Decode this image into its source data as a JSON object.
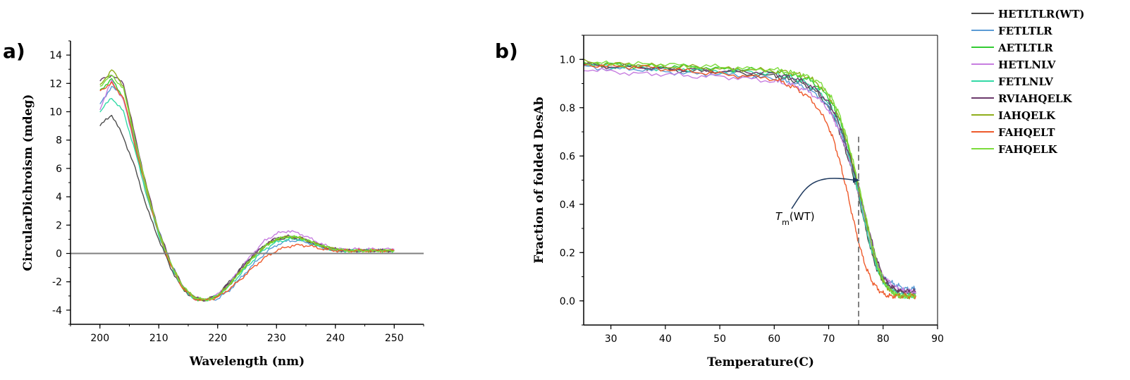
{
  "panels": {
    "a": "a)",
    "b": "b)"
  },
  "colors": {
    "HETLTLR(WT)": "#4d4d4d",
    "FETLTLR": "#5b9bd5",
    "AETLTLR": "#33cc33",
    "HETLNLV": "#c77ee0",
    "FETLNLV": "#33d9a6",
    "RVIAHQELK": "#6b3a6b",
    "IAHQELK": "#8fae1b",
    "FAHQELT": "#ee5a2b",
    "FAHQELK": "#7cdc3c"
  },
  "legend": [
    "HETLTLR(WT)",
    "FETLTLR",
    "AETLTLR",
    "HETLNLV",
    "FETLNLV",
    "RVIAHQELK",
    "IAHQELK",
    "FAHQELT",
    "FAHQELK"
  ],
  "annotation": {
    "tm_T": "T",
    "tm_sub": "m",
    "tm_rest": "(WT)",
    "tm_value": 75.5
  },
  "chart_data": [
    {
      "type": "line",
      "panel": "a)",
      "xlabel": "Wavelength (nm)",
      "ylabel": "CircularDichroism (mdeg)",
      "xlim": [
        195,
        255
      ],
      "ylim": [
        -5,
        15
      ],
      "xticks": [
        200,
        210,
        220,
        230,
        240,
        250
      ],
      "yticks": [
        -4,
        -2,
        0,
        2,
        4,
        6,
        8,
        10,
        12,
        14
      ],
      "x": [
        200,
        202,
        204,
        206,
        208,
        210,
        212,
        214,
        216,
        218,
        220,
        222,
        224,
        226,
        228,
        230,
        232,
        234,
        236,
        238,
        240,
        242,
        244,
        246,
        248,
        250
      ],
      "series": [
        {
          "name": "HETLTLR(WT)",
          "values": [
            9.0,
            9.8,
            8.2,
            6.0,
            3.2,
            1.0,
            -1.0,
            -2.5,
            -3.2,
            -3.3,
            -2.9,
            -2.0,
            -1.0,
            -0.1,
            0.6,
            1.0,
            1.1,
            1.0,
            0.7,
            0.4,
            0.2,
            0.2,
            0.2,
            0.2,
            0.2,
            0.2
          ]
        },
        {
          "name": "FETLTLR",
          "values": [
            10.5,
            11.8,
            11.0,
            7.8,
            4.5,
            1.6,
            -0.6,
            -2.3,
            -3.1,
            -3.3,
            -3.2,
            -2.6,
            -1.7,
            -0.8,
            0.0,
            0.6,
            0.9,
            0.9,
            0.7,
            0.4,
            0.2,
            0.2,
            0.2,
            0.2,
            0.2,
            0.2
          ]
        },
        {
          "name": "AETLTLR",
          "values": [
            11.5,
            12.3,
            11.0,
            7.5,
            4.2,
            1.4,
            -0.8,
            -2.4,
            -3.2,
            -3.3,
            -3.0,
            -2.2,
            -1.2,
            -0.3,
            0.5,
            1.0,
            1.2,
            1.1,
            0.8,
            0.5,
            0.3,
            0.2,
            0.2,
            0.2,
            0.2,
            0.2
          ]
        },
        {
          "name": "HETLNLV",
          "values": [
            10.2,
            12.2,
            10.8,
            7.6,
            4.3,
            1.5,
            -0.7,
            -2.4,
            -3.2,
            -3.3,
            -2.9,
            -2.1,
            -1.0,
            0.0,
            0.9,
            1.4,
            1.6,
            1.4,
            1.0,
            0.6,
            0.3,
            0.3,
            0.3,
            0.3,
            0.3,
            0.3
          ]
        },
        {
          "name": "FETLNLV",
          "values": [
            10.0,
            11.0,
            10.0,
            7.2,
            4.0,
            1.3,
            -0.8,
            -2.4,
            -3.2,
            -3.3,
            -3.0,
            -2.3,
            -1.4,
            -0.5,
            0.3,
            0.8,
            1.0,
            1.0,
            0.7,
            0.4,
            0.2,
            0.2,
            0.2,
            0.2,
            0.2,
            0.2
          ]
        },
        {
          "name": "RVIAHQELK",
          "values": [
            12.2,
            12.6,
            12.0,
            8.2,
            4.6,
            1.6,
            -0.6,
            -2.3,
            -3.1,
            -3.3,
            -3.0,
            -2.1,
            -1.1,
            -0.2,
            0.6,
            1.1,
            1.2,
            1.1,
            0.8,
            0.5,
            0.3,
            0.2,
            0.2,
            0.2,
            0.2,
            0.2
          ]
        },
        {
          "name": "IAHQELK",
          "values": [
            11.8,
            13.0,
            11.8,
            8.0,
            4.5,
            1.5,
            -0.7,
            -2.3,
            -3.1,
            -3.3,
            -3.0,
            -2.2,
            -1.2,
            -0.3,
            0.5,
            1.0,
            1.2,
            1.1,
            0.8,
            0.5,
            0.3,
            0.2,
            0.2,
            0.2,
            0.2,
            0.2
          ]
        },
        {
          "name": "FAHQELT",
          "values": [
            11.5,
            12.0,
            11.0,
            7.6,
            4.3,
            1.4,
            -0.8,
            -2.4,
            -3.2,
            -3.3,
            -3.1,
            -2.5,
            -1.8,
            -1.0,
            -0.3,
            0.2,
            0.5,
            0.6,
            0.5,
            0.3,
            0.2,
            0.2,
            0.2,
            0.2,
            0.2,
            0.2
          ]
        },
        {
          "name": "FAHQELK",
          "values": [
            11.8,
            12.6,
            11.6,
            8.0,
            4.4,
            1.5,
            -0.7,
            -2.3,
            -3.1,
            -3.3,
            -3.0,
            -2.2,
            -1.2,
            -0.3,
            0.5,
            1.0,
            1.2,
            1.1,
            0.8,
            0.5,
            0.3,
            0.2,
            0.2,
            0.2,
            0.2,
            0.2
          ]
        }
      ]
    },
    {
      "type": "line",
      "panel": "b)",
      "xlabel": "Temperature(C)",
      "ylabel": "Fraction of folded DesAb",
      "xlim": [
        25,
        90
      ],
      "ylim": [
        -0.1,
        1.1
      ],
      "xticks": [
        30,
        40,
        50,
        60,
        70,
        80,
        90
      ],
      "yticks": [
        0.0,
        0.2,
        0.4,
        0.6,
        0.8,
        1.0
      ],
      "x": [
        25,
        30,
        35,
        40,
        45,
        50,
        55,
        60,
        62,
        64,
        66,
        68,
        70,
        71,
        72,
        73,
        74,
        75,
        76,
        77,
        78,
        79,
        80,
        81,
        82,
        83,
        84,
        85,
        86
      ],
      "series": [
        {
          "name": "HETLTLR(WT)",
          "values": [
            0.98,
            0.97,
            0.97,
            0.96,
            0.95,
            0.95,
            0.94,
            0.93,
            0.92,
            0.91,
            0.89,
            0.86,
            0.8,
            0.76,
            0.7,
            0.63,
            0.56,
            0.48,
            0.38,
            0.28,
            0.19,
            0.12,
            0.08,
            0.06,
            0.05,
            0.04,
            0.03,
            0.03,
            0.03
          ]
        },
        {
          "name": "FETLTLR",
          "values": [
            0.97,
            0.96,
            0.96,
            0.95,
            0.94,
            0.94,
            0.93,
            0.92,
            0.91,
            0.9,
            0.88,
            0.85,
            0.8,
            0.76,
            0.71,
            0.65,
            0.58,
            0.5,
            0.41,
            0.32,
            0.23,
            0.15,
            0.1,
            0.08,
            0.07,
            0.06,
            0.05,
            0.05,
            0.05
          ]
        },
        {
          "name": "AETLTLR",
          "values": [
            0.98,
            0.98,
            0.97,
            0.97,
            0.97,
            0.96,
            0.96,
            0.95,
            0.94,
            0.93,
            0.92,
            0.89,
            0.84,
            0.8,
            0.75,
            0.68,
            0.6,
            0.51,
            0.41,
            0.31,
            0.21,
            0.13,
            0.08,
            0.05,
            0.03,
            0.02,
            0.02,
            0.02,
            0.02
          ]
        },
        {
          "name": "HETLNLV",
          "values": [
            0.96,
            0.95,
            0.94,
            0.94,
            0.93,
            0.93,
            0.92,
            0.91,
            0.9,
            0.89,
            0.87,
            0.84,
            0.79,
            0.75,
            0.7,
            0.64,
            0.57,
            0.49,
            0.4,
            0.31,
            0.22,
            0.15,
            0.1,
            0.08,
            0.06,
            0.05,
            0.04,
            0.04,
            0.04
          ]
        },
        {
          "name": "FETLNLV",
          "values": [
            0.98,
            0.97,
            0.97,
            0.96,
            0.96,
            0.95,
            0.95,
            0.94,
            0.93,
            0.92,
            0.9,
            0.87,
            0.82,
            0.78,
            0.73,
            0.66,
            0.58,
            0.49,
            0.39,
            0.29,
            0.2,
            0.13,
            0.08,
            0.05,
            0.04,
            0.03,
            0.02,
            0.02,
            0.02
          ]
        },
        {
          "name": "RVIAHQELK",
          "values": [
            0.98,
            0.97,
            0.97,
            0.96,
            0.96,
            0.95,
            0.95,
            0.94,
            0.93,
            0.92,
            0.9,
            0.87,
            0.82,
            0.78,
            0.73,
            0.66,
            0.59,
            0.51,
            0.42,
            0.33,
            0.24,
            0.16,
            0.1,
            0.07,
            0.05,
            0.04,
            0.04,
            0.04,
            0.04
          ]
        },
        {
          "name": "IAHQELK",
          "values": [
            0.99,
            0.98,
            0.98,
            0.97,
            0.97,
            0.96,
            0.96,
            0.95,
            0.95,
            0.94,
            0.93,
            0.9,
            0.85,
            0.81,
            0.76,
            0.69,
            0.61,
            0.52,
            0.42,
            0.32,
            0.22,
            0.14,
            0.08,
            0.05,
            0.03,
            0.02,
            0.02,
            0.02,
            0.02
          ]
        },
        {
          "name": "FAHQELT",
          "values": [
            0.98,
            0.97,
            0.97,
            0.96,
            0.95,
            0.94,
            0.93,
            0.92,
            0.9,
            0.88,
            0.85,
            0.8,
            0.72,
            0.66,
            0.58,
            0.49,
            0.39,
            0.29,
            0.2,
            0.13,
            0.08,
            0.05,
            0.03,
            0.02,
            0.02,
            0.02,
            0.02,
            0.02,
            0.02
          ]
        },
        {
          "name": "FAHQELK",
          "values": [
            0.99,
            0.98,
            0.98,
            0.98,
            0.97,
            0.97,
            0.96,
            0.96,
            0.95,
            0.94,
            0.93,
            0.91,
            0.86,
            0.82,
            0.77,
            0.7,
            0.62,
            0.53,
            0.43,
            0.33,
            0.23,
            0.15,
            0.09,
            0.05,
            0.03,
            0.02,
            0.02,
            0.02,
            0.02
          ]
        }
      ]
    }
  ]
}
